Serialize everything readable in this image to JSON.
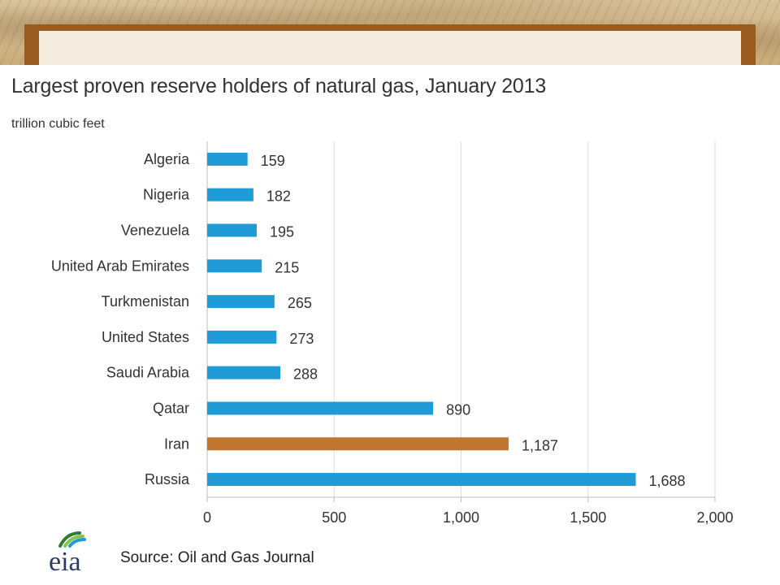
{
  "chart_data": {
    "type": "bar",
    "orientation": "horizontal",
    "title": "Largest proven reserve holders of natural gas, January 2013",
    "unit_label": "trillion cubic feet",
    "categories": [
      "Algeria",
      "Nigeria",
      "Venezuela",
      "United Arab Emirates",
      "Turkmenistan",
      "United States",
      "Saudi Arabia",
      "Qatar",
      "Iran",
      "Russia"
    ],
    "values": [
      159,
      182,
      195,
      215,
      265,
      273,
      288,
      890,
      1187,
      1688
    ],
    "value_labels": [
      "159",
      "182",
      "195",
      "215",
      "265",
      "273",
      "288",
      "890",
      "1,187",
      "1,688"
    ],
    "xlim": [
      0,
      2000
    ],
    "xticks": [
      0,
      500,
      1000,
      1500,
      2000
    ],
    "xtick_labels": [
      "0",
      "500",
      "1,000",
      "1,500",
      "2,000"
    ],
    "grid": "vertical",
    "colors": {
      "default_bar": "#1f9bd7",
      "highlight_bar": "#c0762f",
      "highlight_category": "Iran",
      "frame": "#9c5b1e"
    }
  },
  "source": "Source: Oil and Gas Journal",
  "logo": {
    "text": "eia",
    "icon": "eia-logo-icon"
  }
}
